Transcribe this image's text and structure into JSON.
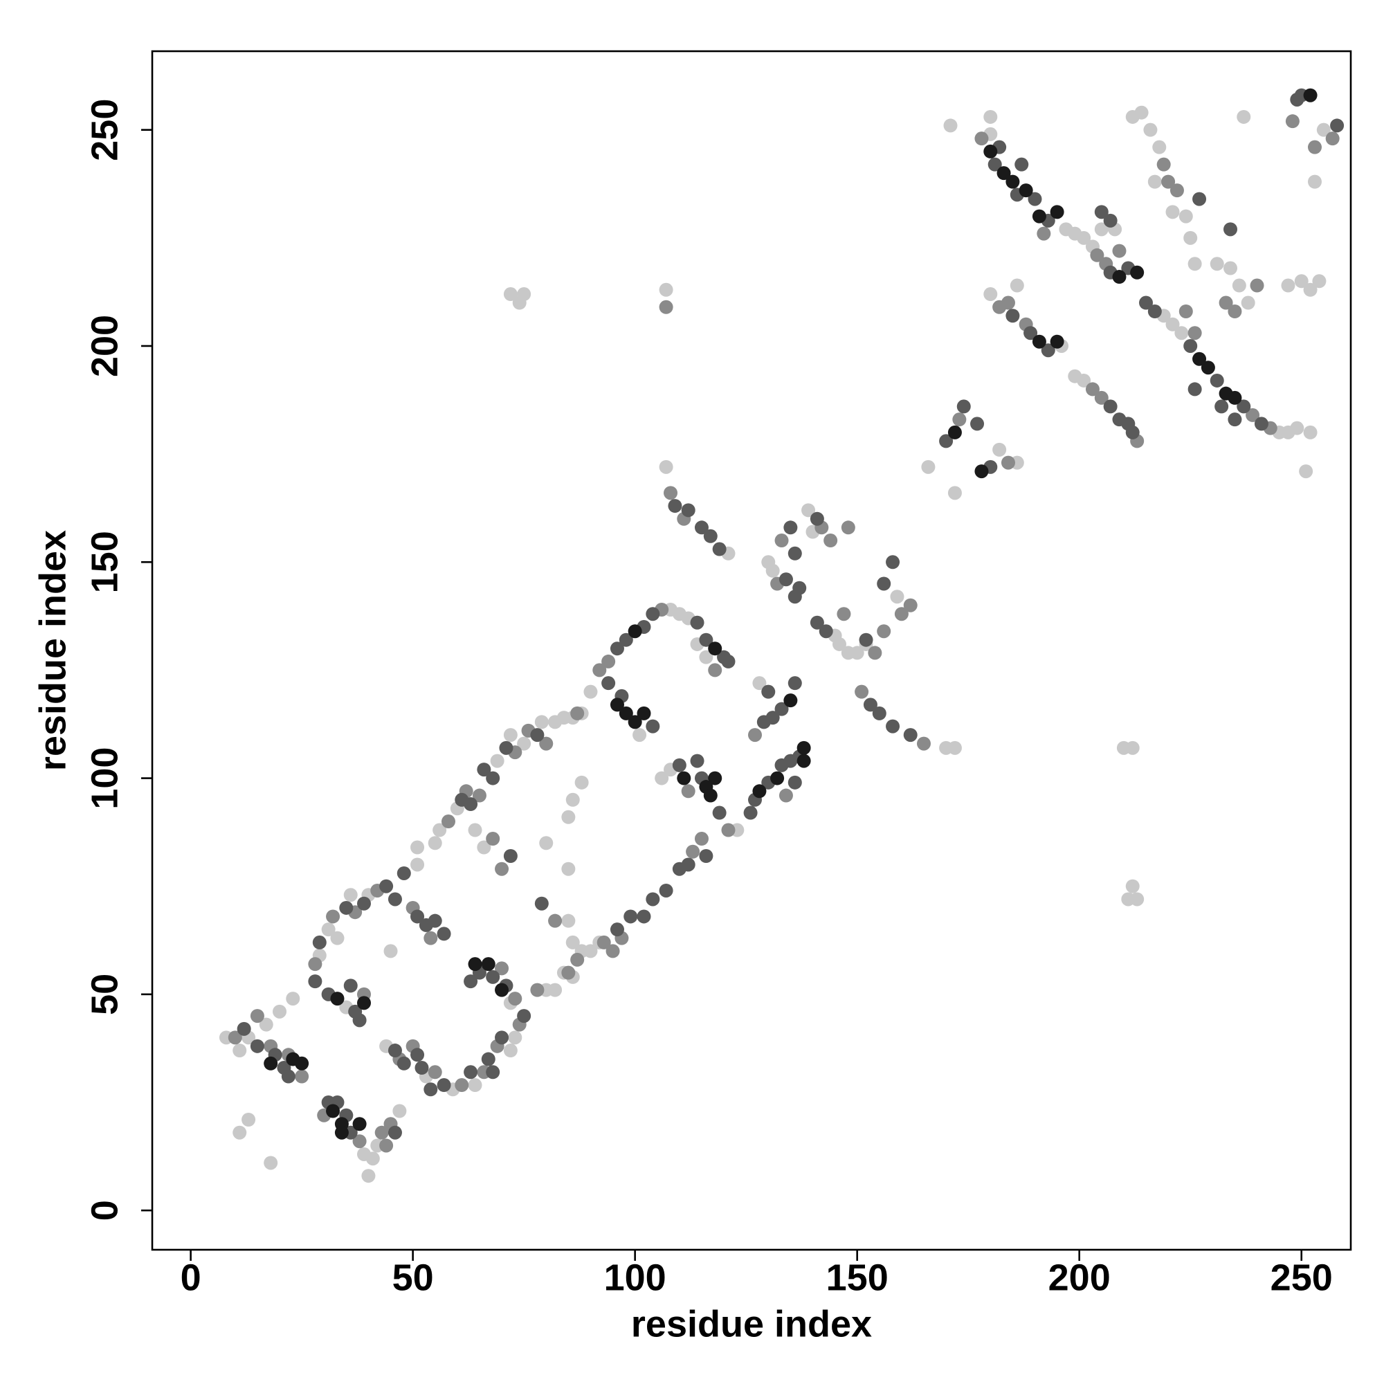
{
  "chart_data": {
    "type": "scatter",
    "xlabel": "residue index",
    "ylabel": "residue index",
    "xlim": [
      -8.66,
      261.1
    ],
    "ylim": [
      -9.1,
      268.2
    ],
    "xticks": [
      0,
      50,
      100,
      150,
      200,
      250
    ],
    "yticks": [
      0,
      50,
      100,
      150,
      200,
      250
    ],
    "groups": [
      {
        "color": "#c8c8c8",
        "x": [
          8,
          11,
          13,
          17,
          20,
          23,
          11,
          13,
          18,
          40,
          41,
          42,
          47,
          39,
          29,
          31,
          33,
          35,
          36,
          40,
          45,
          44,
          53,
          59,
          64,
          72,
          73,
          72,
          51,
          51,
          55,
          56,
          60,
          64,
          66,
          69,
          72,
          75,
          79,
          82,
          84,
          86,
          80,
          82,
          84,
          86,
          88,
          90,
          92,
          86,
          85,
          88,
          90,
          108,
          110,
          112,
          116,
          114,
          106,
          108,
          101,
          86,
          88,
          85,
          85,
          80,
          123,
          128,
          130,
          131,
          140,
          139,
          145,
          146,
          148,
          150,
          152,
          170,
          172,
          159,
          107,
          121,
          72,
          74,
          75,
          107,
          210,
          212,
          213,
          211,
          212,
          166,
          172,
          186,
          182,
          180,
          180,
          171,
          197,
          199,
          201,
          203,
          205,
          208,
          180,
          186,
          196,
          199,
          201,
          219,
          221,
          223,
          245,
          247,
          249,
          252,
          251,
          212,
          214,
          216,
          218,
          221,
          224,
          225,
          226,
          231,
          234,
          236,
          247,
          250,
          252,
          254,
          238,
          237,
          253,
          217,
          255
        ],
        "y": [
          40,
          37,
          40,
          43,
          46,
          49,
          18,
          21,
          11,
          8,
          12,
          15,
          23,
          13,
          59,
          65,
          63,
          47,
          73,
          73,
          60,
          38,
          31,
          28,
          29,
          37,
          40,
          48,
          80,
          84,
          85,
          88,
          93,
          88,
          84,
          104,
          110,
          108,
          113,
          113,
          114,
          114,
          51,
          51,
          55,
          54,
          60,
          60,
          62,
          62,
          67,
          115,
          120,
          139,
          138,
          137,
          128,
          131,
          100,
          102,
          110,
          95,
          99,
          91,
          79,
          85,
          88,
          122,
          150,
          148,
          157,
          162,
          133,
          131,
          129,
          129,
          131,
          107,
          107,
          142,
          172,
          152,
          212,
          210,
          212,
          213,
          107,
          107,
          72,
          72,
          75,
          172,
          166,
          173,
          176,
          253,
          249,
          251,
          227,
          226,
          225,
          223,
          227,
          227,
          212,
          214,
          200,
          193,
          192,
          207,
          205,
          203,
          180,
          180,
          181,
          180,
          171,
          253,
          254,
          250,
          246,
          231,
          230,
          225,
          219,
          219,
          218,
          214,
          214,
          215,
          213,
          215,
          210,
          253,
          238,
          238,
          250
        ]
      },
      {
        "color": "#8a8a8a",
        "x": [
          10,
          15,
          18,
          22,
          25,
          30,
          43,
          45,
          44,
          38,
          28,
          32,
          39,
          37,
          42,
          50,
          54,
          47,
          50,
          55,
          61,
          66,
          69,
          74,
          73,
          70,
          58,
          62,
          65,
          68,
          70,
          73,
          76,
          80,
          87,
          78,
          85,
          87,
          93,
          95,
          97,
          82,
          92,
          94,
          118,
          106,
          112,
          113,
          115,
          121,
          134,
          127,
          132,
          133,
          142,
          144,
          148,
          154,
          156,
          160,
          162,
          147,
          151,
          165,
          108,
          111,
          107,
          173,
          184,
          178,
          192,
          204,
          206,
          209,
          182,
          184,
          188,
          203,
          205,
          213,
          226,
          224,
          243,
          239,
          219,
          220,
          222,
          233,
          235,
          240,
          257,
          253,
          248
        ],
        "y": [
          40,
          45,
          38,
          36,
          31,
          22,
          18,
          20,
          15,
          16,
          57,
          68,
          50,
          69,
          74,
          70,
          63,
          35,
          38,
          32,
          29,
          32,
          38,
          43,
          49,
          56,
          90,
          97,
          96,
          86,
          79,
          106,
          111,
          108,
          115,
          51,
          55,
          58,
          62,
          60,
          63,
          67,
          125,
          127,
          125,
          139,
          97,
          83,
          86,
          88,
          96,
          110,
          145,
          155,
          158,
          155,
          158,
          129,
          134,
          138,
          140,
          138,
          120,
          108,
          166,
          160,
          209,
          183,
          173,
          248,
          226,
          221,
          219,
          222,
          209,
          210,
          205,
          190,
          188,
          178,
          203,
          208,
          181,
          184,
          242,
          238,
          236,
          210,
          208,
          214,
          248,
          246,
          252
        ]
      },
      {
        "color": "#5a5a5a",
        "x": [
          12,
          15,
          19,
          21,
          22,
          31,
          33,
          35,
          36,
          46,
          28,
          29,
          31,
          36,
          37,
          38,
          35,
          39,
          44,
          46,
          48,
          51,
          53,
          55,
          57,
          46,
          48,
          51,
          52,
          54,
          57,
          63,
          67,
          68,
          70,
          75,
          71,
          68,
          65,
          63,
          61,
          63,
          66,
          68,
          71,
          78,
          72,
          96,
          99,
          102,
          104,
          107,
          110,
          112,
          79,
          96,
          98,
          102,
          104,
          114,
          116,
          120,
          121,
          94,
          97,
          104,
          110,
          114,
          115,
          119,
          116,
          126,
          127,
          130,
          133,
          135,
          137,
          136,
          129,
          131,
          133,
          136,
          130,
          134,
          136,
          137,
          136,
          135,
          141,
          143,
          141,
          158,
          156,
          153,
          155,
          158,
          162,
          152,
          109,
          112,
          115,
          117,
          119,
          170,
          177,
          180,
          174,
          181,
          182,
          187,
          186,
          190,
          193,
          207,
          211,
          185,
          189,
          193,
          207,
          209,
          211,
          212,
          215,
          217,
          225,
          231,
          226,
          232,
          235,
          237,
          241,
          227,
          234,
          249,
          250,
          258,
          205,
          207
        ],
        "y": [
          42,
          38,
          36,
          33,
          31,
          25,
          25,
          22,
          18,
          18,
          53,
          62,
          50,
          52,
          46,
          44,
          70,
          71,
          75,
          72,
          78,
          68,
          66,
          67,
          64,
          37,
          34,
          36,
          33,
          28,
          29,
          32,
          35,
          32,
          40,
          45,
          52,
          54,
          55,
          53,
          95,
          94,
          102,
          100,
          107,
          110,
          82,
          65,
          68,
          68,
          72,
          74,
          79,
          80,
          71,
          130,
          132,
          135,
          138,
          136,
          132,
          128,
          127,
          122,
          119,
          112,
          103,
          104,
          100,
          92,
          82,
          92,
          95,
          99,
          103,
          104,
          105,
          99,
          113,
          114,
          116,
          122,
          120,
          146,
          142,
          144,
          152,
          158,
          160,
          134,
          136,
          150,
          145,
          117,
          115,
          112,
          110,
          132,
          163,
          162,
          158,
          156,
          153,
          178,
          182,
          172,
          186,
          242,
          246,
          242,
          235,
          234,
          229,
          217,
          218,
          207,
          203,
          199,
          186,
          183,
          182,
          180,
          210,
          208,
          200,
          192,
          190,
          186,
          183,
          186,
          182,
          234,
          227,
          257,
          258,
          251,
          231,
          229
        ]
      },
      {
        "color": "#1a1a1a",
        "x": [
          18,
          23,
          25,
          32,
          34,
          34,
          38,
          33,
          39,
          64,
          67,
          70,
          96,
          98,
          100,
          102,
          111,
          116,
          117,
          118,
          100,
          118,
          135,
          132,
          138,
          138,
          128,
          172,
          178,
          180,
          183,
          185,
          188,
          191,
          195,
          209,
          213,
          191,
          195,
          227,
          229,
          233,
          235,
          252
        ],
        "y": [
          34,
          35,
          34,
          23,
          20,
          18,
          20,
          49,
          48,
          57,
          57,
          51,
          117,
          115,
          113,
          115,
          100,
          98,
          96,
          100,
          134,
          130,
          118,
          100,
          104,
          107,
          97,
          180,
          171,
          245,
          240,
          238,
          236,
          230,
          231,
          216,
          217,
          201,
          201,
          197,
          195,
          189,
          188,
          258
        ]
      }
    ]
  }
}
